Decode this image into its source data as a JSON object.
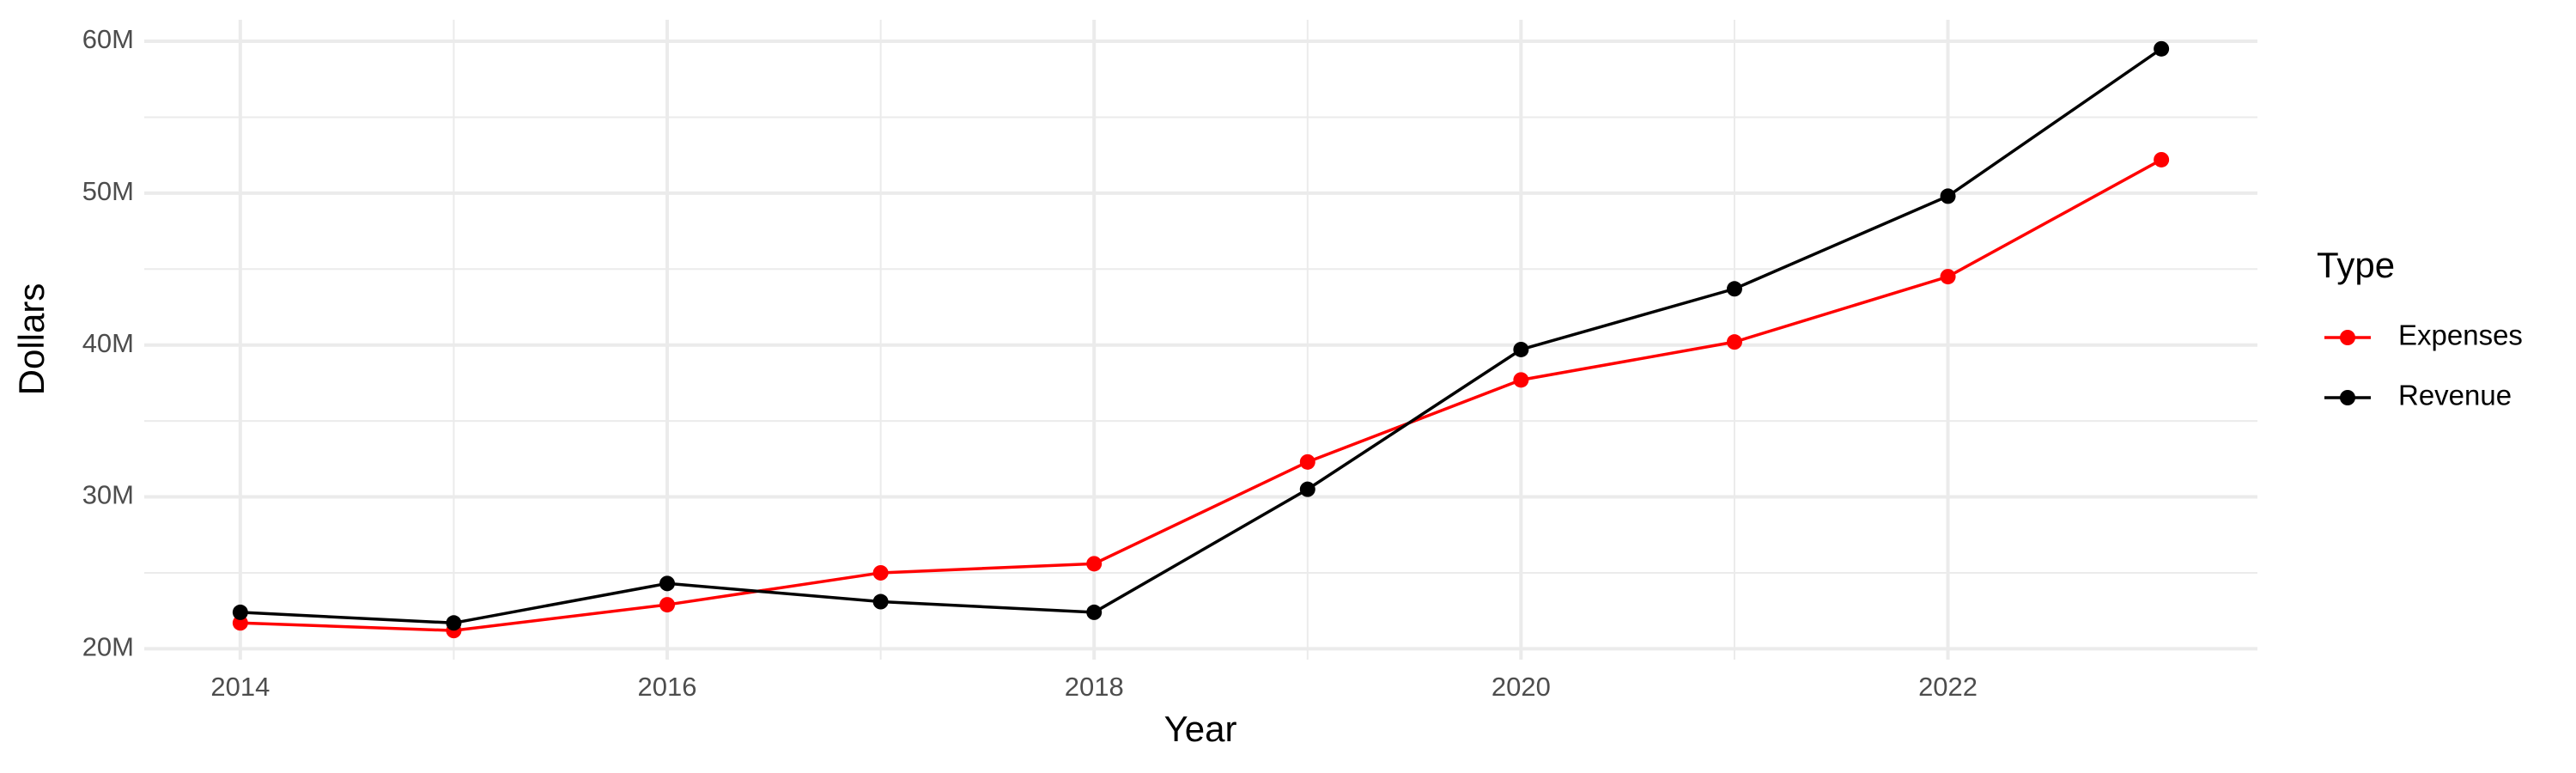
{
  "chart_data": {
    "type": "line",
    "x_label": "Year",
    "y_label": "Dollars",
    "legend_title": "Type",
    "x": [
      2014,
      2015,
      2016,
      2017,
      2018,
      2019,
      2020,
      2021,
      2022,
      2023
    ],
    "series": [
      {
        "name": "Expenses",
        "color": "#ff0000",
        "values": [
          21700000,
          21200000,
          22900000,
          25000000,
          25600000,
          32300000,
          37700000,
          40200000,
          44500000,
          52200000
        ]
      },
      {
        "name": "Revenue",
        "color": "#000000",
        "values": [
          22400000,
          21700000,
          24300000,
          23100000,
          22400000,
          30500000,
          39700000,
          43700000,
          49800000,
          59500000
        ]
      }
    ],
    "xlim": [
      2013.55,
      2023.45
    ],
    "xticks": [
      2014,
      2016,
      2018,
      2020,
      2022
    ],
    "ylim": [
      19285000,
      61415000
    ],
    "yticks": [
      {
        "value": 20000000,
        "label": "20M"
      },
      {
        "value": 30000000,
        "label": "30M"
      },
      {
        "value": 40000000,
        "label": "40M"
      },
      {
        "value": 50000000,
        "label": "50M"
      },
      {
        "value": 60000000,
        "label": "60M"
      }
    ],
    "grid": true,
    "legend": "right"
  }
}
